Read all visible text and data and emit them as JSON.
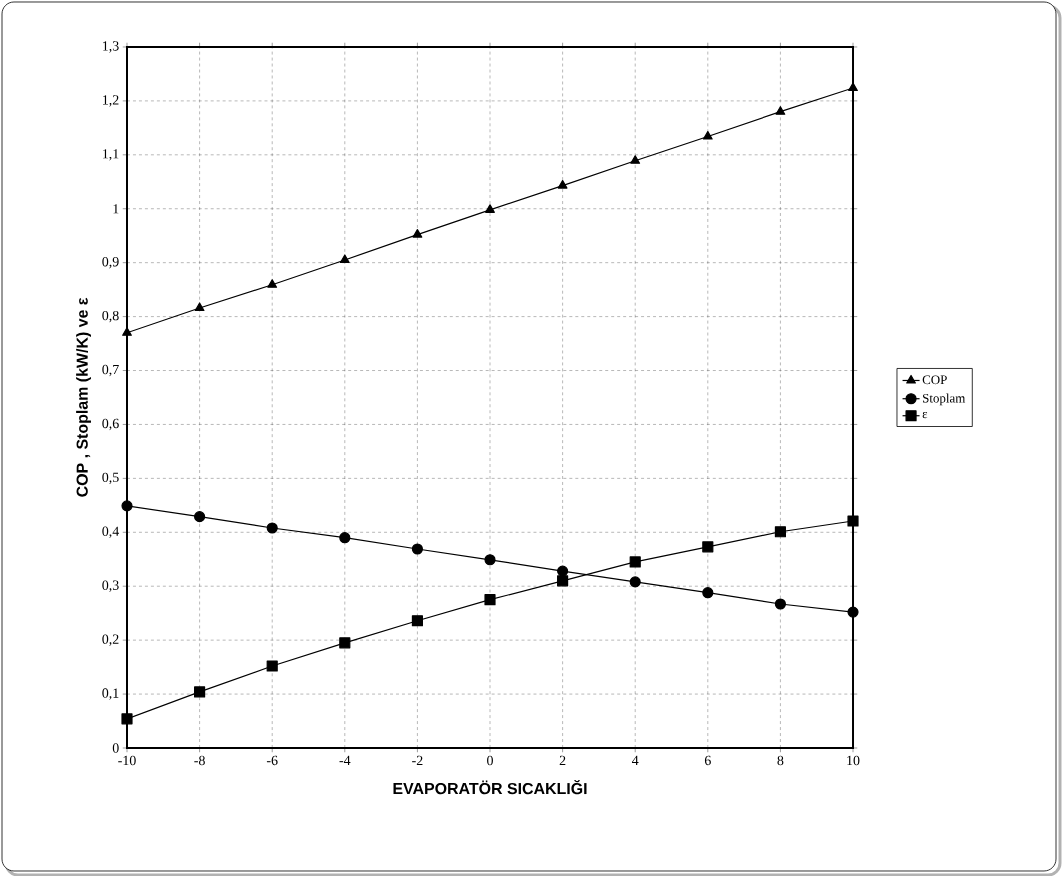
{
  "chart_data": {
    "type": "line",
    "xlabel": "EVAPORATÖR  SICAKLIĞI",
    "ylabel": "COP , Stoplam (kW/K) ve ε",
    "x": [
      -10,
      -8,
      -6,
      -4,
      -2,
      0,
      2,
      4,
      6,
      8,
      10
    ],
    "series": [
      {
        "name": "COP",
        "color": "#000000",
        "marker": "triangle",
        "values": [
          0.77,
          0.816,
          0.859,
          0.905,
          0.952,
          0.998,
          1.043,
          1.089,
          1.134,
          1.18,
          1.224
        ]
      },
      {
        "name": "Stoplam",
        "color": "#000000",
        "marker": "circle",
        "values": [
          0.449,
          0.429,
          0.408,
          0.39,
          0.369,
          0.349,
          0.328,
          0.308,
          0.288,
          0.267,
          0.252
        ]
      },
      {
        "name": "ε",
        "color": "#000000",
        "marker": "square",
        "values": [
          0.054,
          0.104,
          0.152,
          0.195,
          0.236,
          0.275,
          0.31,
          0.345,
          0.373,
          0.401,
          0.421
        ]
      }
    ],
    "xlim": [
      -10,
      10
    ],
    "xticks": [
      -10,
      -8,
      -6,
      -4,
      -2,
      0,
      2,
      4,
      6,
      8,
      10
    ],
    "ylim": [
      0,
      1.3
    ],
    "yticks": [
      0,
      {
        "value": 0.1,
        "label": "0,1"
      },
      {
        "value": 0.2,
        "label": "0,2"
      },
      {
        "value": 0.3,
        "label": "0,3"
      },
      {
        "value": 0.4,
        "label": "0,4"
      },
      {
        "value": 0.5,
        "label": "0,5"
      },
      {
        "value": 0.6,
        "label": "0,6"
      },
      {
        "value": 0.7,
        "label": "0,7"
      },
      {
        "value": 0.8,
        "label": "0,8"
      },
      {
        "value": 0.9,
        "label": "0,9"
      },
      1,
      {
        "value": 1.1,
        "label": "1,1"
      },
      {
        "value": 1.2,
        "label": "1,2"
      },
      {
        "value": 1.3,
        "label": "1,3"
      }
    ],
    "grid": true,
    "legend": "right",
    "line_style": "solid"
  }
}
